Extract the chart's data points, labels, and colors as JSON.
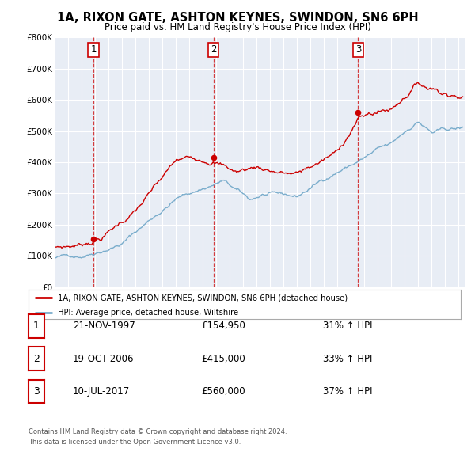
{
  "title": "1A, RIXON GATE, ASHTON KEYNES, SWINDON, SN6 6PH",
  "subtitle": "Price paid vs. HM Land Registry's House Price Index (HPI)",
  "red_label": "1A, RIXON GATE, ASHTON KEYNES, SWINDON, SN6 6PH (detached house)",
  "blue_label": "HPI: Average price, detached house, Wiltshire",
  "footer1": "Contains HM Land Registry data © Crown copyright and database right 2024.",
  "footer2": "This data is licensed under the Open Government Licence v3.0.",
  "sales": [
    {
      "num": 1,
      "date": "21-NOV-1997",
      "price": "£154,950",
      "pct": "31%",
      "year": 1997.89,
      "value": 154950
    },
    {
      "num": 2,
      "date": "19-OCT-2006",
      "price": "£415,000",
      "pct": "33%",
      "year": 2006.8,
      "value": 415000
    },
    {
      "num": 3,
      "date": "10-JUL-2017",
      "price": "£560,000",
      "pct": "37%",
      "year": 2017.53,
      "value": 560000
    }
  ],
  "red_color": "#cc0000",
  "blue_color": "#7aadcc",
  "vline_color": "#cc0000",
  "plot_bg": "#e8edf5",
  "ylim": [
    0,
    800000
  ],
  "xlim_start": 1995.0,
  "xlim_end": 2025.5,
  "yticks": [
    0,
    100000,
    200000,
    300000,
    400000,
    500000,
    600000,
    700000,
    800000
  ],
  "ytick_labels": [
    "£0",
    "£100K",
    "£200K",
    "£300K",
    "£400K",
    "£500K",
    "£600K",
    "£700K",
    "£800K"
  ]
}
